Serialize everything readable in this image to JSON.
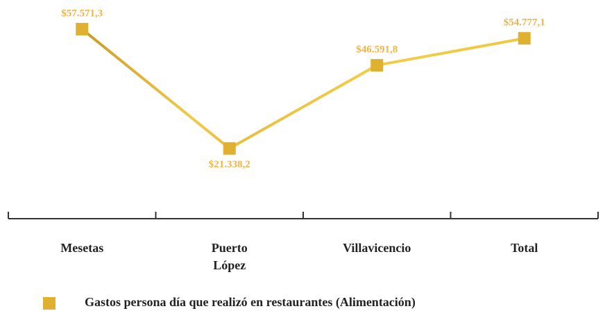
{
  "chart_data": {
    "type": "line",
    "categories": [
      "Mesetas",
      "Puerto López",
      "Villavicencio",
      "Total"
    ],
    "series": [
      {
        "name": "Gastos persona día que realizó en restaurantes (Alimentación)",
        "color": "#e0b030",
        "values": [
          57571.3,
          21338.2,
          46591.8,
          54777.1
        ],
        "value_labels": [
          "$57.571,3",
          "$21.338,2",
          "$46.591,8",
          "$54.777,1"
        ]
      }
    ],
    "label_color": "#f2b445",
    "ylim": [
      0,
      66000
    ]
  }
}
